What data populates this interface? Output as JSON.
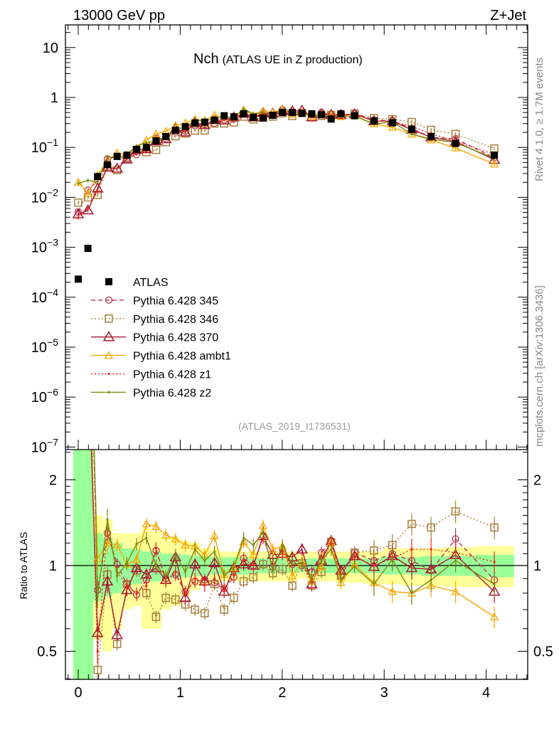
{
  "header": {
    "energy": "13000 GeV pp",
    "process": "Z+Jet",
    "observable": "Nch",
    "observable_desc": "(ATLAS UE in Z production)",
    "analysis": "(ATLAS_2019_I1736531)",
    "side_rivet": "Rivet 4.1.0, ≥ 1.7M events",
    "side_site": "mcplots.cern.ch [arXiv:1306.3436]"
  },
  "chart_data": {
    "type": "line",
    "title": "Nch (ATLAS UE in Z production)",
    "xlabel": "",
    "ylabel": "",
    "ratio_ylabel": "Ratio to ATLAS",
    "xlim": [
      -0.12,
      4.4
    ],
    "ylim": [
      1e-07,
      27
    ],
    "ratio_ylim": [
      0.4,
      2.55
    ],
    "yscale": "log",
    "ratio_yscale": "log",
    "x_ticks": [
      "0",
      "1",
      "2",
      "3",
      "4"
    ],
    "y_ticks": [
      {
        "base": "10",
        "exp": ""
      },
      {
        "base": "1",
        "exp": ""
      },
      {
        "base": "10",
        "exp": "−1"
      },
      {
        "base": "10",
        "exp": "−2"
      },
      {
        "base": "10",
        "exp": "−3"
      },
      {
        "base": "10",
        "exp": "−4"
      },
      {
        "base": "10",
        "exp": "−5"
      },
      {
        "base": "10",
        "exp": "−6"
      },
      {
        "base": "10",
        "exp": "−7"
      }
    ],
    "ratio_ticks": [
      "2",
      "1",
      "0.5"
    ],
    "legend_position": "center-left",
    "x": [
      0,
      0.095,
      0.19,
      0.286,
      0.381,
      0.477,
      0.572,
      0.668,
      0.763,
      0.859,
      0.954,
      1.05,
      1.145,
      1.24,
      1.336,
      1.431,
      1.526,
      1.622,
      1.717,
      1.813,
      1.908,
      2.003,
      2.099,
      2.194,
      2.29,
      2.385,
      2.48,
      2.576,
      2.71,
      2.9,
      3.08,
      3.27,
      3.46,
      3.7,
      4.08
    ],
    "reference": {
      "name": "ATLAS",
      "color": "#000000",
      "values": [
        0.00023,
        0.00095,
        0.026,
        0.045,
        0.066,
        0.07,
        0.091,
        0.1,
        0.135,
        0.165,
        0.22,
        0.26,
        0.31,
        0.32,
        0.35,
        0.43,
        0.41,
        0.47,
        0.4,
        0.39,
        0.44,
        0.5,
        0.5,
        0.48,
        0.47,
        0.45,
        0.37,
        0.47,
        0.43,
        0.34,
        0.31,
        0.23,
        0.165,
        0.12,
        0.07
      ],
      "band_total_lo": [
        0.3,
        0.3,
        0.55,
        0.5,
        0.6,
        0.7,
        0.72,
        0.6,
        0.6,
        0.7,
        0.72,
        0.78,
        0.82,
        0.85,
        0.86,
        0.88,
        0.88,
        0.88,
        0.88,
        0.88,
        0.88,
        0.88,
        0.88,
        0.9,
        0.88,
        0.88,
        0.88,
        0.87,
        0.87,
        0.86,
        0.86,
        0.85,
        0.85,
        0.84,
        0.84
      ],
      "band_total_hi": [
        3,
        3,
        1.5,
        1.45,
        1.3,
        1.3,
        1.3,
        1.35,
        1.32,
        1.25,
        1.25,
        1.22,
        1.2,
        1.15,
        1.15,
        1.12,
        1.12,
        1.12,
        1.12,
        1.12,
        1.12,
        1.12,
        1.12,
        1.1,
        1.12,
        1.12,
        1.12,
        1.12,
        1.12,
        1.12,
        1.15,
        1.15,
        1.15,
        1.16,
        1.17
      ],
      "band_stat_lo": [
        0.3,
        0.3,
        0.75,
        0.78,
        0.8,
        0.85,
        0.86,
        0.88,
        0.88,
        0.9,
        0.9,
        0.91,
        0.92,
        0.92,
        0.93,
        0.93,
        0.93,
        0.93,
        0.94,
        0.94,
        0.94,
        0.94,
        0.94,
        0.95,
        0.94,
        0.94,
        0.94,
        0.94,
        0.94,
        0.94,
        0.93,
        0.93,
        0.92,
        0.92,
        0.91
      ],
      "band_stat_hi": [
        3,
        3,
        1.3,
        1.25,
        1.2,
        1.15,
        1.14,
        1.12,
        1.12,
        1.1,
        1.1,
        1.09,
        1.08,
        1.08,
        1.07,
        1.07,
        1.07,
        1.07,
        1.06,
        1.06,
        1.06,
        1.06,
        1.06,
        1.05,
        1.06,
        1.06,
        1.06,
        1.06,
        1.06,
        1.06,
        1.07,
        1.07,
        1.08,
        1.08,
        1.09
      ],
      "band_total_color": "#ffff99",
      "band_stat_color": "#99ff99"
    },
    "mc_rel_err": 0.05,
    "series": [
      {
        "name": "Pythia 6.428 345",
        "color": "#b83050",
        "style": "dashed",
        "marker": "circle",
        "ratio": [
          22,
          14.7,
          0.82,
          1.3,
          1.01,
          0.86,
          0.79,
          0.89,
          1.13,
          0.9,
          0.93,
          0.81,
          0.88,
          0.89,
          0.87,
          0.83,
          0.91,
          1.06,
          1.0,
          1.27,
          0.99,
          1.14,
          1.01,
          1.0,
          0.95,
          1.11,
          1.22,
          0.92,
          1.11,
          1.04,
          1.1,
          1.04,
          0.96,
          1.24,
          0.89
        ]
      },
      {
        "name": "Pythia 6.428 346",
        "color": "#a8803a",
        "style": "dotted",
        "marker": "square",
        "ratio": [
          34,
          10.5,
          0.43,
          0.93,
          0.53,
          0.86,
          0.96,
          0.8,
          0.66,
          0.77,
          0.76,
          0.73,
          0.7,
          0.68,
          0.86,
          0.7,
          0.77,
          0.88,
          0.91,
          1.01,
          0.94,
          0.97,
          0.85,
          1.02,
          0.85,
          0.95,
          1.21,
          0.92,
          1.11,
          1.13,
          1.18,
          1.4,
          1.36,
          1.55,
          1.36
        ]
      },
      {
        "name": "Pythia 6.428 370",
        "color": "#a81830",
        "style": "solid",
        "marker": "triangle-large",
        "ratio": [
          20,
          5.8,
          0.58,
          0.88,
          0.57,
          0.82,
          0.98,
          0.93,
          0.98,
          0.89,
          1.07,
          0.77,
          1.01,
          0.88,
          1.02,
          0.81,
          0.98,
          1.01,
          1.0,
          1.27,
          1.09,
          1.1,
          1.07,
          1.14,
          0.86,
          1.04,
          1.22,
          0.96,
          1.08,
          0.99,
          1.08,
          0.98,
          0.97,
          1.09,
          0.81
        ]
      },
      {
        "name": "Pythia 6.428 ambt1",
        "color": "#f5a800",
        "style": "solid",
        "marker": "triangle",
        "ratio": [
          87,
          12.6,
          1.06,
          1.2,
          1.18,
          1.01,
          1.05,
          1.4,
          1.37,
          1.28,
          1.24,
          1.18,
          1.17,
          1.09,
          1.27,
          0.93,
          0.98,
          1.21,
          1.09,
          1.38,
          1.14,
          1.17,
          0.92,
          1.03,
          0.88,
          0.99,
          1.21,
          0.87,
          1.01,
          0.87,
          0.81,
          0.8,
          0.85,
          0.81,
          0.66
        ]
      },
      {
        "name": "Pythia 6.428 z1",
        "color": "#ee2a10",
        "style": "dotted",
        "marker": "dot",
        "ratio": [
          17,
          6.3,
          0.5,
          1.35,
          0.95,
          0.85,
          0.8,
          0.85,
          1.15,
          0.88,
          0.95,
          0.8,
          0.9,
          0.85,
          0.9,
          0.82,
          0.93,
          1.05,
          1.0,
          1.25,
          1.0,
          1.12,
          1.0,
          1.02,
          0.88,
          1.08,
          1.2,
          0.93,
          1.07,
          1.0,
          1.06,
          1.14,
          1.14,
          1.11,
          1.03
        ]
      },
      {
        "name": "Pythia 6.428 z2",
        "color": "#7a8a10",
        "style": "solid",
        "marker": "dot",
        "ratio": [
          83,
          23,
          0.78,
          1.45,
          0.92,
          1.02,
          1.19,
          1.25,
          1.0,
          0.92,
          1.09,
          0.95,
          1.14,
          1.04,
          1.12,
          0.92,
          0.99,
          1.25,
          1.18,
          1.31,
          0.96,
          1.18,
          1.01,
          1.02,
          0.9,
          1.04,
          1.14,
          0.9,
          0.99,
          0.86,
          1.05,
          0.8,
          0.89,
          1.04,
          0.86
        ]
      }
    ]
  }
}
